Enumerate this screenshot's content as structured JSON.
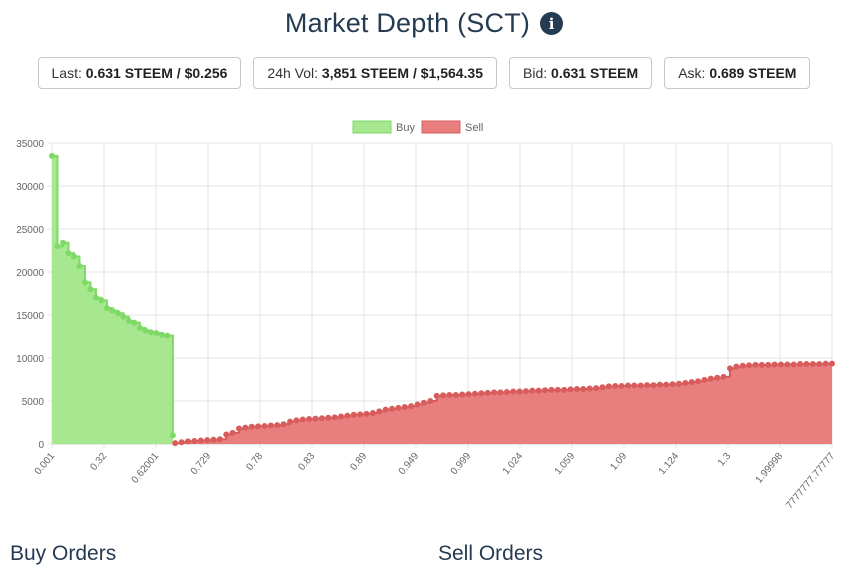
{
  "header": {
    "title": "Market Depth (SCT)",
    "info_icon": "info-circle-icon"
  },
  "stats": [
    {
      "label": "Last:",
      "value": "0.631 STEEM / $0.256"
    },
    {
      "label": "24h Vol:",
      "value": "3,851 STEEM / $1,564.35"
    },
    {
      "label": "Bid:",
      "value": "0.631 STEEM"
    },
    {
      "label": "Ask:",
      "value": "0.689 STEEM"
    }
  ],
  "sections": {
    "buy_orders": "Buy Orders",
    "sell_orders": "Sell Orders"
  },
  "colors": {
    "buy_fill": "#a6e78f",
    "buy_line": "#7fd966",
    "sell_fill": "#e87e7e",
    "sell_line": "#d95c5c"
  },
  "chart_data": {
    "type": "area",
    "ylim": [
      0,
      35000
    ],
    "yticks": [
      0,
      5000,
      10000,
      15000,
      20000,
      25000,
      30000,
      35000
    ],
    "xtick_labels": [
      "0.001",
      "0.32",
      "0.62001",
      "0.729",
      "0.78",
      "0.83",
      "0.89",
      "0.949",
      "0.999",
      "1.024",
      "1.059",
      "1.09",
      "1.124",
      "1.3",
      "1.99998",
      "7777777.77777"
    ],
    "grid": true,
    "legend_position": "top-center",
    "series": [
      {
        "name": "Buy",
        "values": [
          33500,
          23000,
          23400,
          22200,
          21800,
          20700,
          18800,
          18000,
          17000,
          16700,
          15800,
          15500,
          15200,
          14800,
          14300,
          14100,
          13500,
          13200,
          13000,
          12900,
          12700,
          12600,
          1000
        ]
      },
      {
        "name": "Sell",
        "values": [
          100,
          200,
          300,
          350,
          400,
          450,
          500,
          550,
          1100,
          1300,
          1800,
          1900,
          2000,
          2050,
          2100,
          2150,
          2200,
          2300,
          2600,
          2750,
          2850,
          2900,
          2950,
          3000,
          3050,
          3100,
          3200,
          3300,
          3400,
          3450,
          3500,
          3600,
          3800,
          4000,
          4100,
          4200,
          4300,
          4400,
          4600,
          4800,
          5000,
          5600,
          5650,
          5700,
          5700,
          5750,
          5800,
          5850,
          5900,
          5950,
          6000,
          6000,
          6050,
          6100,
          6100,
          6150,
          6200,
          6200,
          6250,
          6300,
          6300,
          6300,
          6350,
          6400,
          6400,
          6450,
          6500,
          6600,
          6700,
          6750,
          6750,
          6800,
          6800,
          6800,
          6850,
          6850,
          6900,
          6900,
          6950,
          7000,
          7100,
          7200,
          7300,
          7450,
          7600,
          7700,
          7800,
          8800,
          9000,
          9100,
          9150,
          9200,
          9200,
          9200,
          9250,
          9250,
          9250,
          9250,
          9300,
          9300,
          9300,
          9300,
          9350,
          9350
        ]
      }
    ]
  }
}
